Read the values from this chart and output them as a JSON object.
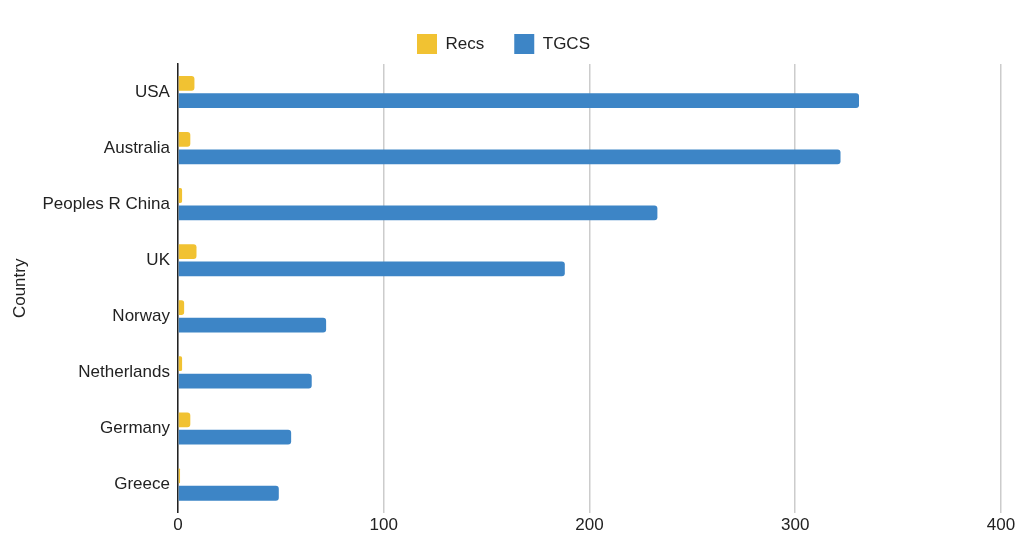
{
  "chart_data": {
    "type": "bar",
    "orientation": "horizontal",
    "ylabel": "Country",
    "categories": [
      "USA",
      "Australia",
      "Peoples R China",
      "UK",
      "Norway",
      "Netherlands",
      "Germany",
      "Greece"
    ],
    "series": [
      {
        "name": "Recs",
        "color": "#f1c232",
        "values": [
          8,
          6,
          2,
          9,
          3,
          2,
          6,
          1
        ]
      },
      {
        "name": "TGCS",
        "color": "#3d85c6",
        "values": [
          331,
          322,
          233,
          188,
          72,
          65,
          55,
          49
        ]
      }
    ],
    "xlim": [
      0,
      400
    ],
    "xticks": [
      0,
      100,
      200,
      300,
      400
    ],
    "grid": "x",
    "legend": "top"
  }
}
